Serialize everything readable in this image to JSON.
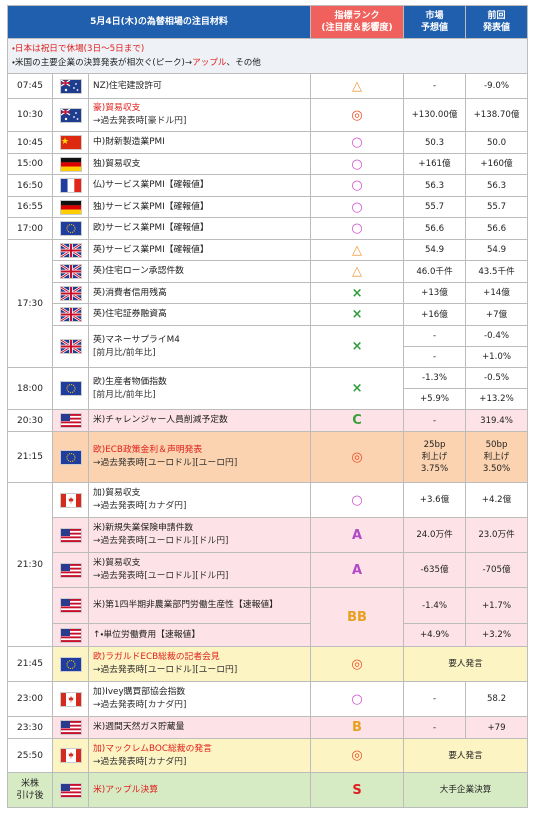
{
  "header": {
    "title": "5月4日(木)の為替相場の注目材料",
    "rank": [
      "指標ランク",
      "(注目度＆影響度)"
    ],
    "forecast": [
      "市場",
      "予想値"
    ],
    "previous": [
      "前回",
      "発表値"
    ]
  },
  "notes": [
    "・日本は祝日で休場(3日～5日まで)",
    [
      "・米国の主要企業の決算発表が相次ぐ(ピーク)→",
      "アップル",
      "、その他"
    ]
  ],
  "rows": [
    {
      "time": "07:45",
      "event": "NZ)住宅建設許可",
      "rank": "△",
      "forecast": "-",
      "previous": "-9.0%"
    },
    {
      "time": "10:30",
      "event": "豪)貿易収支",
      "sub": "→過去発表時[豪ドル円]",
      "rank": "◎",
      "forecast": "+130.00億",
      "previous": "+138.70億"
    },
    {
      "time": "10:45",
      "event": "中)財新製造業PMI",
      "rank": "○",
      "forecast": "50.3",
      "previous": "50.0"
    },
    {
      "time": "15:00",
      "event": "独)貿易収支",
      "rank": "○",
      "forecast": "+161億",
      "previous": "+160億"
    },
    {
      "time": "16:50",
      "event": "仏)サービス業PMI【確報値】",
      "rank": "○",
      "forecast": "56.3",
      "previous": "56.3"
    },
    {
      "time": "16:55",
      "event": "独)サービス業PMI【確報値】",
      "rank": "○",
      "forecast": "55.7",
      "previous": "55.7"
    },
    {
      "time": "17:00",
      "event": "欧)サービス業PMI【確報値】",
      "rank": "○",
      "forecast": "56.6",
      "previous": "56.6"
    },
    {
      "time": "17:30",
      "event": "英)サービス業PMI【確報値】",
      "rank": "△",
      "forecast": "54.9",
      "previous": "54.9"
    },
    {
      "event": "英)住宅ローン承認件数",
      "rank": "△",
      "forecast": "46.0千件",
      "previous": "43.5千件"
    },
    {
      "event": "英)消費者信用残高",
      "rank": "×",
      "forecast": "+13億",
      "previous": "+14億"
    },
    {
      "event": "英)住宅証券融資高",
      "rank": "×",
      "forecast": "+16億",
      "previous": "+7億"
    },
    {
      "event": "英)マネーサプライM4",
      "sub": "[前月比/前年比]",
      "rank": "×",
      "forecast": [
        "-",
        "-"
      ],
      "previous": [
        "-0.4%",
        "+1.0%"
      ]
    },
    {
      "time": "18:00",
      "event": "欧)生産者物価指数",
      "sub": "[前月比/前年比]",
      "rank": "×",
      "forecast": [
        "-1.3%",
        "+5.9%"
      ],
      "previous": [
        "-0.5%",
        "+13.2%"
      ]
    },
    {
      "time": "20:30",
      "event": "米)チャレンジャー人員削減予定数",
      "rank": "C",
      "forecast": "-",
      "previous": "319.4%"
    },
    {
      "time": "21:15",
      "event": "欧)ECB政策金利＆声明発表",
      "sub": "→過去発表時[ユーロドル][ユーロ円]",
      "rank": "◎",
      "forecast": [
        "25bp",
        "利上げ",
        "3.75%"
      ],
      "previous": [
        "50bp",
        "利上げ",
        "3.50%"
      ]
    },
    {
      "time": "21:30",
      "event": "加)貿易収支",
      "sub": "→過去発表時[カナダ円]",
      "rank": "○",
      "forecast": "+3.6億",
      "previous": "+4.2億"
    },
    {
      "event": "米)新規失業保険申請件数",
      "sub": "→過去発表時[ユーロドル][ドル円]",
      "rank": "A",
      "forecast": "24.0万件",
      "previous": "23.0万件"
    },
    {
      "event": "米)貿易収支",
      "sub": "→過去発表時[ユーロドル][ドル円]",
      "rank": "A",
      "forecast": "-635億",
      "previous": "-705億"
    },
    {
      "event": "米)第1四半期非農業部門労働生産性【速報値】",
      "rank": "BB",
      "forecast": "-1.4%",
      "previous": "+1.7%"
    },
    {
      "event": "↑・単位労働費用【速報値】",
      "forecast": "+4.9%",
      "previous": "+3.2%"
    },
    {
      "time": "21:45",
      "event": "欧)ラガルドECB総裁の記者会見",
      "sub": "→過去発表時[ユーロドル][ユーロ円]",
      "rank": "◎",
      "result": "要人発言"
    },
    {
      "time": "23:00",
      "event": "加)Ivey購買部協会指数",
      "sub": "→過去発表時[カナダ円]",
      "rank": "○",
      "forecast": "-",
      "previous": "58.2"
    },
    {
      "time": "23:30",
      "event": "米)週間天然ガス貯蔵量",
      "rank": "B",
      "forecast": "-",
      "previous": "+79"
    },
    {
      "time": "25:50",
      "event": "加)マックレムBOC総裁の発言",
      "sub": "→過去発表時[カナダ円]",
      "rank": "◎",
      "result": "要人発言"
    },
    {
      "time": [
        "米株",
        "引け後"
      ],
      "event": "米)アップル決算",
      "rank": "S",
      "result": "大手企業決算"
    }
  ]
}
